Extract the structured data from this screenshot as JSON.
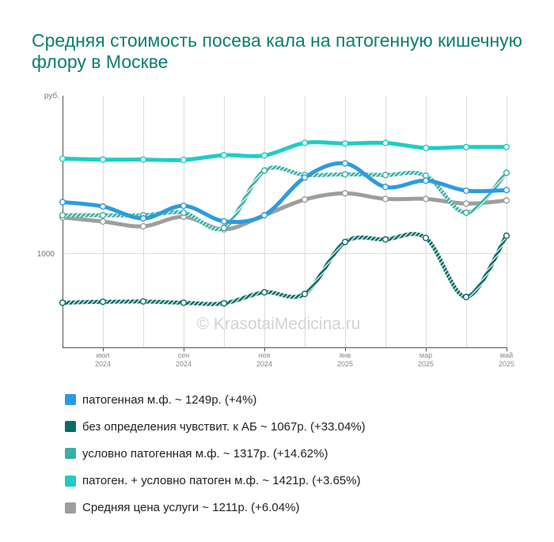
{
  "chart_data": {
    "type": "line",
    "title": "Средняя стоимость посева кала на патогенную кишечную флору в Москве",
    "ylabel": "руб.",
    "yticks": [
      {
        "value": 1000,
        "label": "1000"
      }
    ],
    "ylim": [
      700,
      1500
    ],
    "y_scale": "linear",
    "x": [
      "2024-06",
      "2024-07",
      "2024-08",
      "2024-09",
      "2024-10",
      "2024-11",
      "2024-12",
      "2025-01",
      "2025-02",
      "2025-03",
      "2025-04",
      "2025-05"
    ],
    "xticks": [
      {
        "index": 1,
        "month": "июл",
        "year": "2024"
      },
      {
        "index": 3,
        "month": "сен",
        "year": "2024"
      },
      {
        "index": 5,
        "month": "ноя",
        "year": "2024"
      },
      {
        "index": 7,
        "month": "янв",
        "year": "2025"
      },
      {
        "index": 9,
        "month": "мар",
        "year": "2025"
      },
      {
        "index": 11,
        "month": "май",
        "year": "2025"
      }
    ],
    "grid": true,
    "watermark": "© KrasotaiMedicina.ru",
    "legend_position": "bottom",
    "series": [
      {
        "name": "патогенная м.ф.",
        "legend": "патогенная м.ф. ~ 1249р. (+4%)",
        "color": "#2d9be0",
        "style": "solid",
        "values": [
          1162,
          1148,
          1110,
          1150,
          1101,
          1120,
          1240,
          1285,
          1210,
          1230,
          1198,
          1200
        ]
      },
      {
        "name": "без определения чувствит. к АБ",
        "legend": "без определения чувствит. к АБ ~ 1067р. (+33.04%)",
        "color": "#0b6b66",
        "style": "striped",
        "values": [
          842,
          845,
          846,
          842,
          840,
          875,
          870,
          1035,
          1043,
          1048,
          860,
          1055
        ]
      },
      {
        "name": "условно патогенная м.ф.",
        "legend": "условно патогенная м.ф. ~ 1317р. (+14.62%)",
        "color": "#37b0a5",
        "style": "striped",
        "values": [
          1120,
          1120,
          1120,
          1128,
          1080,
          1262,
          1248,
          1250,
          1248,
          1246,
          1128,
          1255
        ]
      },
      {
        "name": "патоген. + условно патоген м.ф.",
        "legend": "патоген. + условно патоген м.ф. ~ 1421р. (+3.65%)",
        "color": "#1ecdc5",
        "style": "solid",
        "values": [
          1300,
          1297,
          1297,
          1296,
          1311,
          1310,
          1350,
          1348,
          1350,
          1334,
          1337,
          1337
        ]
      },
      {
        "name": "Средняя цена услуги",
        "legend": "Средняя цена услуги ~ 1211р. (+6.04%)",
        "color": "#9e9e9e",
        "style": "solid",
        "values": [
          1113,
          1100,
          1085,
          1115,
          1075,
          1120,
          1170,
          1190,
          1172,
          1172,
          1157,
          1167
        ]
      }
    ]
  }
}
